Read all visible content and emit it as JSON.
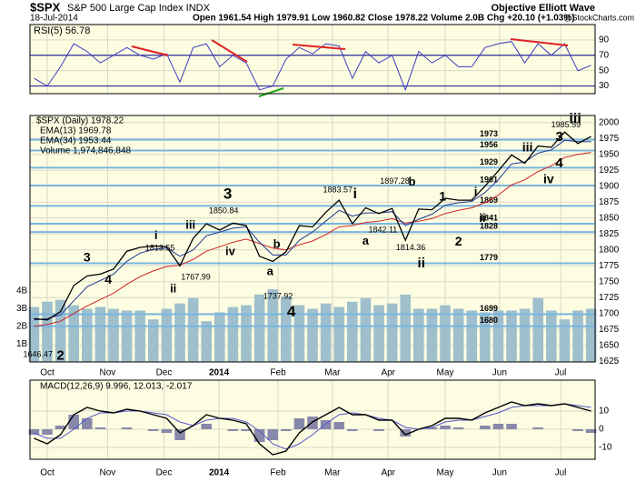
{
  "chart_data": {
    "type": "stock",
    "symbol": "$SPX",
    "name": "S&P 500 Large Cap Index INDX",
    "date": "18-Jul-2014",
    "stats": "Open 1961.54 High 1979.91 Low 1960.82 Close 1978.22 Volume 2.0B Chg +20.10 (+1.03%)",
    "source": "Objective Elliott Wave",
    "credit": "@StockCharts.com",
    "rsi_label": "RSI(5) 56.78",
    "price_label": "$SPX (Daily) 1978.22",
    "ema13_label": "EMA(13) 1969.78",
    "ema34_label": "EMA(34) 1953.44",
    "volume_label": "Volume 1,974,846,848",
    "macd_label": "MACD(12,26,9) 9.996, 12.013, -2.017",
    "x": [
      0,
      1,
      2,
      3,
      4,
      5,
      6,
      7,
      8,
      9,
      10,
      11,
      12,
      13,
      14,
      15,
      16,
      17,
      18,
      19,
      20,
      21,
      22,
      23,
      24,
      25,
      26,
      27,
      28,
      29,
      30,
      31,
      32,
      33,
      34,
      35,
      36,
      37,
      38,
      39,
      40,
      41,
      42
    ],
    "xlim": [
      -0.3,
      42.3
    ],
    "xticks": [
      {
        "value": 1.0,
        "label": "Oct"
      },
      {
        "value": 5.55,
        "label": "Nov"
      },
      {
        "value": 9.8,
        "label": "Dec"
      },
      {
        "value": 13.95,
        "label": "2014"
      },
      {
        "value": 18.4,
        "label": "Feb"
      },
      {
        "value": 22.5,
        "label": "Mar"
      },
      {
        "value": 26.7,
        "label": "Apr"
      },
      {
        "value": 31.0,
        "label": "May"
      },
      {
        "value": 35.1,
        "label": "Jun"
      },
      {
        "value": 39.7,
        "label": "Jul"
      }
    ],
    "close": [
      1692,
      1690,
      1703,
      1744,
      1759,
      1762,
      1770,
      1798,
      1804,
      1806,
      1805,
      1775,
      1818,
      1841,
      1831,
      1842,
      1838,
      1790,
      1782,
      1797,
      1838,
      1836,
      1859,
      1878,
      1841,
      1866,
      1857,
      1865,
      1815,
      1864,
      1863,
      1881,
      1878,
      1878,
      1900,
      1924,
      1949,
      1936,
      1963,
      1961,
      1985,
      1967,
      1978
    ],
    "close_color": "#000000",
    "ema13": [
      1690,
      1692,
      1698,
      1720,
      1742,
      1752,
      1762,
      1782,
      1795,
      1801,
      1803,
      1790,
      1800,
      1822,
      1828,
      1834,
      1836,
      1812,
      1792,
      1792,
      1815,
      1828,
      1845,
      1862,
      1853,
      1858,
      1858,
      1860,
      1838,
      1848,
      1856,
      1870,
      1874,
      1876,
      1890,
      1910,
      1935,
      1938,
      1952,
      1957,
      1972,
      1970,
      1970
    ],
    "ema13_color": "#1f3a93",
    "ema34": [
      1680,
      1683,
      1688,
      1700,
      1712,
      1722,
      1732,
      1746,
      1758,
      1767,
      1774,
      1776,
      1785,
      1798,
      1805,
      1812,
      1817,
      1810,
      1803,
      1800,
      1808,
      1814,
      1824,
      1836,
      1838,
      1843,
      1845,
      1849,
      1842,
      1845,
      1849,
      1857,
      1862,
      1866,
      1874,
      1886,
      1902,
      1910,
      1923,
      1932,
      1945,
      1950,
      1953
    ],
    "ema34_color": "#cc2222",
    "ylim": [
      1624,
      2011
    ],
    "yticks": [
      1625,
      1650,
      1675,
      1700,
      1725,
      1750,
      1775,
      1800,
      1825,
      1850,
      1875,
      1900,
      1925,
      1950,
      1975,
      2000
    ],
    "volume": [
      3100000000,
      3400000000,
      3500000000,
      3200000000,
      3000000000,
      3100000000,
      3000000000,
      2900000000,
      2900000000,
      2400000000,
      3000000000,
      3300000000,
      3600000000,
      2300000000,
      2800000000,
      3100000000,
      3200000000,
      3800000000,
      4100000000,
      3700000000,
      3200000000,
      3000000000,
      3300000000,
      3100000000,
      3400000000,
      3600000000,
      3200000000,
      3300000000,
      3800000000,
      3000000000,
      3000000000,
      3200000000,
      3000000000,
      2900000000,
      2800000000,
      2900000000,
      2900000000,
      3000000000,
      3600000000,
      2900000000,
      2400000000,
      2900000000,
      3000000000
    ],
    "volume_color": "#9fbfcc",
    "vlim": [
      0,
      13900000000
    ],
    "vticks": [
      {
        "value": 1000000000,
        "label": "1B"
      },
      {
        "value": 2000000000,
        "label": "2B"
      },
      {
        "value": 3000000000,
        "label": "3B"
      },
      {
        "value": 4000000000,
        "label": "4B"
      }
    ],
    "levels": [
      1973,
      1956,
      1929,
      1901,
      1869,
      1841,
      1828,
      1779,
      1699,
      1680
    ],
    "level_color": "#79b6e0",
    "price_labels": [
      {
        "x": 0.3,
        "value": 1646.47
      },
      {
        "x": 12.2,
        "value": 1767.99
      },
      {
        "x": 9.5,
        "value": 1813.55
      },
      {
        "x": 14.3,
        "value": 1850.84
      },
      {
        "x": 18.4,
        "value": 1737.92
      },
      {
        "x": 22.9,
        "value": 1883.57
      },
      {
        "x": 26.3,
        "value": 1842.11
      },
      {
        "x": 27.2,
        "value": 1897.28
      },
      {
        "x": 28.4,
        "value": 1814.36
      },
      {
        "x": 40.1,
        "value": 1985.59
      }
    ],
    "annotations": [
      {
        "text": "2",
        "color": "#2a2a8a"
      },
      {
        "text": "3",
        "color": "#2a2a8a"
      },
      {
        "text": "4",
        "color": "#2a2a8a"
      },
      {
        "text": "i",
        "color": "#2a7f8a"
      },
      {
        "text": "ii",
        "color": "#2a7f8a"
      },
      {
        "text": "iii",
        "color": "#2a7a2a"
      },
      {
        "text": "iv",
        "color": "#2a7a2a"
      },
      {
        "text": "3",
        "color": "#000000"
      },
      {
        "text": "a",
        "color": "#7a1a6a"
      },
      {
        "text": "b",
        "color": "#7a1a6a"
      },
      {
        "text": "4",
        "color": "#000000"
      },
      {
        "text": "i",
        "color": "#7a1a6a"
      },
      {
        "text": "a",
        "color": "#2a2a8a"
      },
      {
        "text": "b",
        "color": "#2a2a8a"
      },
      {
        "text": "ii",
        "color": "#7a1a6a"
      },
      {
        "text": "1",
        "color": "#2a2a8a"
      },
      {
        "text": "2",
        "color": "#2a2a8a"
      },
      {
        "text": "i",
        "color": "#2a7f8a"
      },
      {
        "text": "ii",
        "color": "#2a7f8a"
      },
      {
        "text": "iii",
        "color": "#2a7f8a"
      },
      {
        "text": "iv",
        "color": "#2a7f8a"
      },
      {
        "text": "3",
        "color": "#2a2a8a"
      },
      {
        "text": "4",
        "color": "#2a2a8a"
      },
      {
        "text": "iii",
        "color": "#2a7a2a"
      }
    ],
    "rsi": [
      40,
      30,
      55,
      85,
      75,
      60,
      70,
      80,
      70,
      65,
      72,
      35,
      80,
      85,
      55,
      70,
      60,
      25,
      30,
      65,
      80,
      72,
      85,
      82,
      40,
      75,
      60,
      70,
      25,
      75,
      60,
      70,
      55,
      55,
      80,
      85,
      88,
      60,
      85,
      70,
      85,
      50,
      57
    ],
    "rsi_color": "#3b3bbf",
    "rsi_ylim": [
      20,
      110
    ],
    "rsi_yticks": [
      30,
      50,
      70,
      90
    ],
    "rsi_bands": [
      30,
      70
    ],
    "macd": [
      -5,
      -8,
      -3,
      8,
      12,
      10,
      9,
      11,
      10,
      8,
      6,
      -2,
      2,
      8,
      6,
      5,
      3,
      -8,
      -14,
      -12,
      -2,
      4,
      8,
      12,
      8,
      8,
      5,
      5,
      -3,
      0,
      2,
      6,
      6,
      5,
      9,
      12,
      15,
      13,
      14,
      13,
      14,
      12,
      10
    ],
    "signal": [
      -2,
      -5,
      -5,
      0,
      6,
      9,
      9,
      10,
      10,
      9,
      8,
      4,
      2,
      5,
      6,
      6,
      4,
      -1,
      -8,
      -11,
      -8,
      -3,
      3,
      8,
      9,
      8,
      6,
      5,
      1,
      0,
      1,
      4,
      5,
      5,
      7,
      9,
      12,
      13,
      13,
      13,
      14,
      13,
      12
    ],
    "histogram": [
      -3,
      -3,
      2,
      8,
      6,
      1,
      0,
      1,
      0,
      -1,
      -2,
      -6,
      0,
      3,
      0,
      -1,
      -1,
      -7,
      -6,
      -1,
      6,
      7,
      5,
      4,
      -1,
      0,
      -1,
      0,
      -4,
      0,
      1,
      2,
      1,
      0,
      2,
      3,
      3,
      0,
      1,
      0,
      0,
      -1,
      -2
    ],
    "macd_color": "#000000",
    "signal_color": "#5555cc",
    "histogram_color": "#8888aa",
    "macd_ylim": [
      -16.5,
      27
    ],
    "macd_yticks": [
      -10,
      0,
      10
    ],
    "panel_color": "#fdfde2",
    "grid": true
  }
}
